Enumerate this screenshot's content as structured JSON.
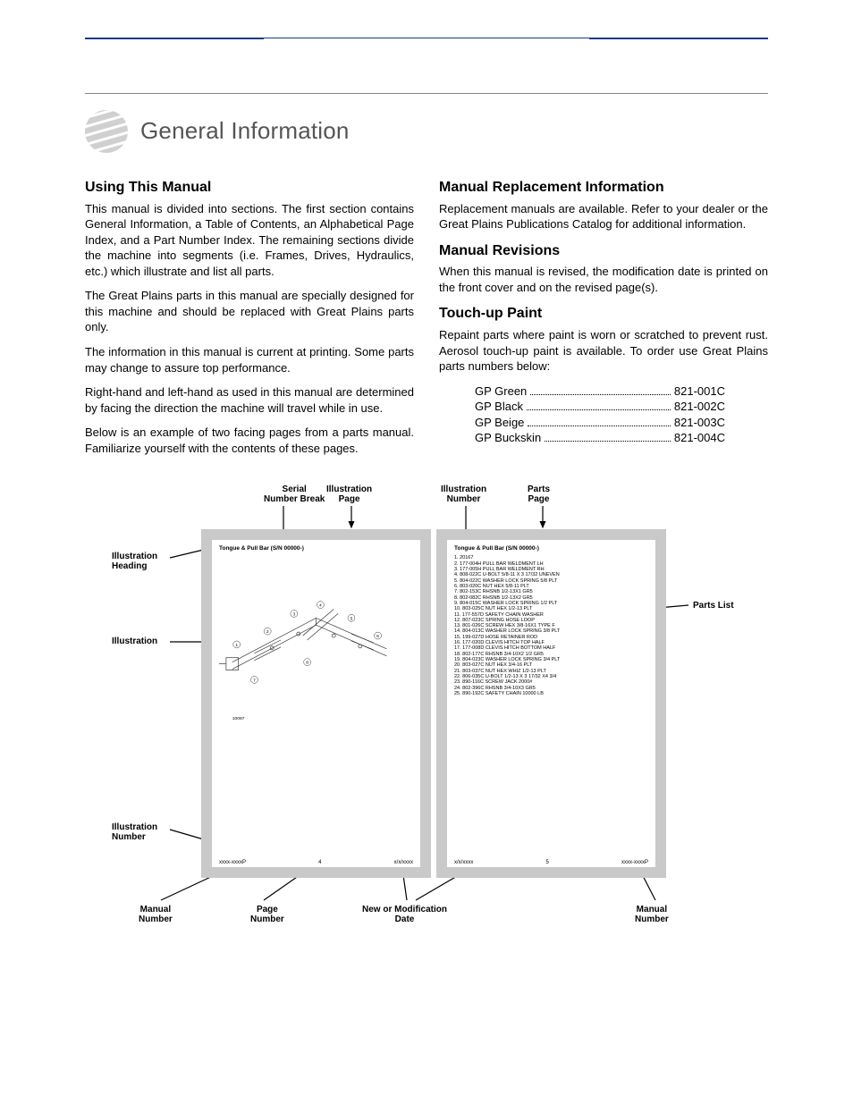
{
  "page_title": "General Information",
  "left_column": {
    "heading": "Using This Manual",
    "paragraphs": [
      "This manual is divided into sections. The first section contains General Information, a Table of Contents, an Alphabetical Page Index, and a Part Number Index. The remaining sections divide the machine into segments (i.e. Frames, Drives, Hydraulics, etc.) which illustrate and list all parts.",
      "The Great Plains parts in this manual are specially designed for this machine and should be replaced with Great Plains parts only.",
      "The information in this manual is current at printing. Some parts may change to assure top performance.",
      "Right-hand and left-hand as used in this manual are determined by facing the direction the machine will travel while in use.",
      "Below is an example of two facing pages from a parts manual. Familiarize yourself with the contents of these pages."
    ]
  },
  "right_column": {
    "sections": [
      {
        "heading": "Manual Replacement Information",
        "paragraphs": [
          "Replacement manuals are available. Refer to your dealer or the Great Plains Publications Catalog for additional information."
        ]
      },
      {
        "heading": "Manual Revisions",
        "paragraphs": [
          "When this manual is revised, the modification date is printed on the front cover and on the revised page(s)."
        ]
      },
      {
        "heading": "Touch-up Paint",
        "paragraphs": [
          "Repaint parts where paint is worn or scratched to prevent rust. Aerosol touch-up paint is available. To order use Great Plains parts numbers below:"
        ]
      }
    ],
    "paint_list": [
      {
        "name": "GP Green",
        "number": "821-001C"
      },
      {
        "name": "GP Black",
        "number": "821-002C"
      },
      {
        "name": "GP Beige",
        "number": "821-003C"
      },
      {
        "name": "GP Buckskin",
        "number": "821-004C"
      }
    ]
  },
  "diagram": {
    "callouts": {
      "serial_break": "Serial\nNumber Break",
      "illus_page": "Illustration\nPage",
      "illus_number_top": "Illustration\nNumber",
      "parts_page": "Parts\nPage",
      "illus_heading": "Illustration\nHeading",
      "illustration": "Illustration",
      "parts_list": "Parts List",
      "illus_number_left": "Illustration\nNumber",
      "manual_number_l": "Manual\nNumber",
      "page_number": "Page\nNumber",
      "mod_date": "New or Modification\nDate",
      "manual_number_r": "Manual\nNumber"
    },
    "left_page": {
      "title": "Tongue & Pull Bar (S/N 00000-)",
      "footer_left": "xxxx-xxxxP",
      "footer_center": "4",
      "footer_right": "x/x/xxxx"
    },
    "right_page": {
      "title": "Tongue & Pull Bar (S/N 00000-)",
      "footer_left": "x/x/xxxx",
      "footer_center": "5",
      "footer_right": "xxxx-xxxxP",
      "parts": [
        "1.   20167",
        "2.   177-004H   PULL BAR WELDMENT LH",
        "3.   177-005H   PULL BAR WELDMENT RH",
        "4.   808-022C   U-BOLT 5/8-11 X 3 17/32 UNEVEN",
        "5.   804-022C   WASHER LOCK SPRING 5/8 PLT",
        "6.   803-020C   NUT HEX 5/8-11 PLT",
        "7.   802-153C   RHSNB 1/2-13X1 GR5",
        "8.   802-082C   RHSNB 1/2-13X2 GR5",
        "9.   804-015C   WASHER LOCK SPRING 1/2 PLT",
        "10.  803-025C   NUT HEX 1/2-13 PLT",
        "11.  177-557D   SAFETY CHAIN WASHER",
        "12.  807-023C   SPRING HOSE LOOP",
        "13.  801-026C   SCREW HEX 3/8-16X1 TYPE F",
        "14.  804-013C   WASHER LOCK SPRING 3/8 PLT",
        "15.  199-027D   HOSE RETAINER ROD",
        "16.  177-020D   CLEVIS HITCH TOP HALF",
        "17.  177-008D   CLEVIS HITCH BOTTOM HALF",
        "18.  802-177C   RHSNB 3/4-10X2 1/2 GR5",
        "19.  804-023C   WASHER LOCK SPRING 3/4 PLT",
        "20.  803-027C   NUT HEX 3/4-16 PLT",
        "21.  803-037C   NUT HEX WHIZ 1/2-13 PLT",
        "22.  806-035C   U-BOLT 1/2-13 X 3 17/32 X4 3/4",
        "23.  890-116C   SCREW JACK 2000#",
        "24.  802-396C   RHSNB 3/4-10X3 GR5",
        "25.  890-192C   SAFETY CHAIN 10000 LB"
      ]
    }
  },
  "colors": {
    "rule": "#1a3a8a",
    "logo_gray": "#b8b8b8",
    "title_gray": "#555555",
    "page_border": "#c9c9c9",
    "text": "#000000"
  }
}
